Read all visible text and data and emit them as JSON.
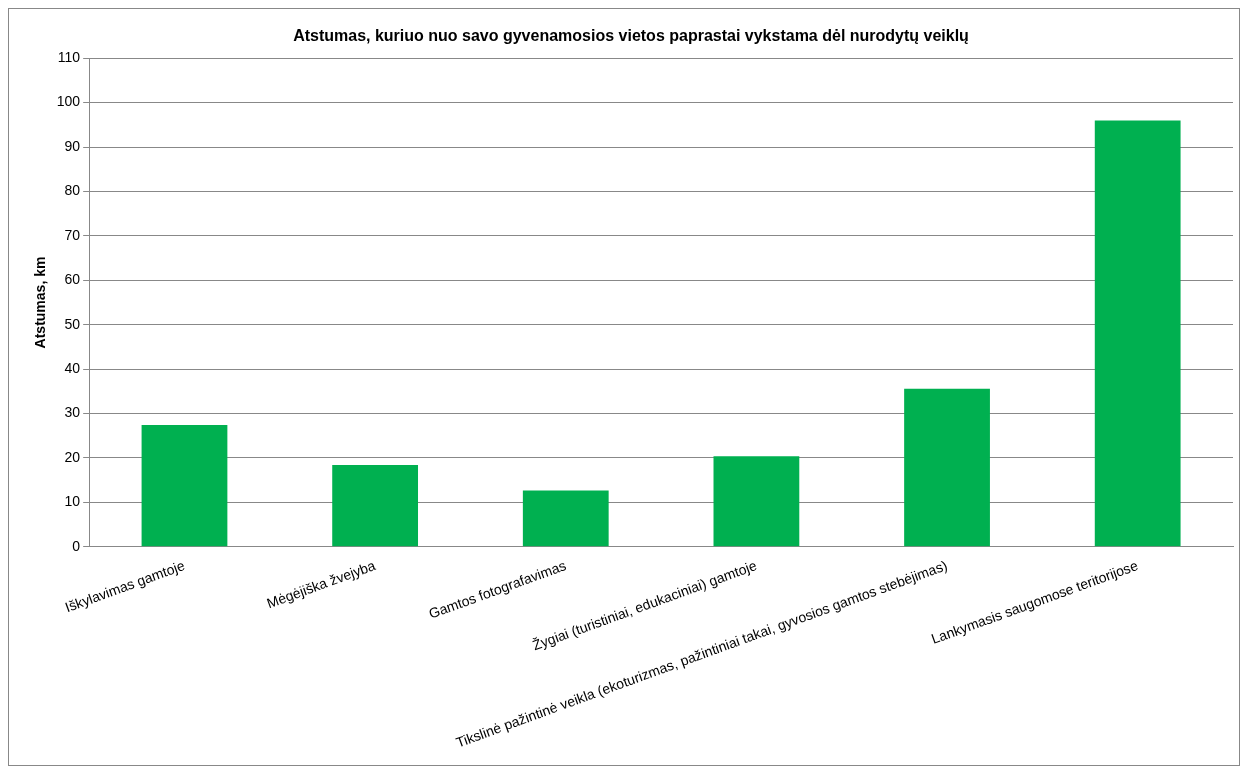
{
  "chart_data": {
    "type": "bar",
    "title": "Atstumas, kuriuo nuo savo gyvenamosios vietos paprastai vykstama dėl nurodytų veiklų",
    "ylabel": "Atstumas, km",
    "categories": [
      "Iškylavimas gamtoje",
      "Mėgėjiška žvejyba",
      "Gamtos fotografavimas",
      "Žygiai (turistiniai, edukaciniai) gamtoje",
      "Tikslinė pažintinė veikla (ekoturizmas, pažintiniai takai, gyvosios gamtos stebėjimas)",
      "Lankymasis saugomose teritorijose"
    ],
    "values": [
      27.4,
      18.4,
      12.7,
      20.4,
      35.6,
      96.0
    ],
    "color": "#00b050",
    "ylim": [
      0,
      110
    ],
    "yticks": [
      0,
      10,
      20,
      30,
      40,
      50,
      60,
      70,
      80,
      90,
      100,
      110
    ],
    "grid": "y",
    "legend": false
  }
}
